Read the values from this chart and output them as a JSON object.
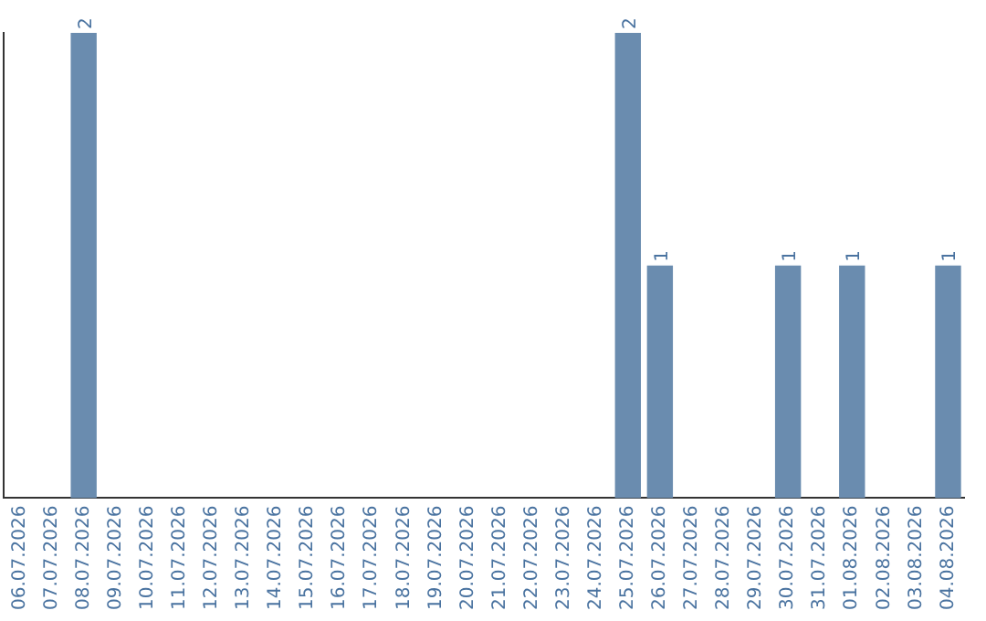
{
  "chart_data": {
    "type": "bar",
    "categories": [
      "06.07.2026",
      "07.07.2026",
      "08.07.2026",
      "09.07.2026",
      "10.07.2026",
      "11.07.2026",
      "12.07.2026",
      "13.07.2026",
      "14.07.2026",
      "15.07.2026",
      "16.07.2026",
      "17.07.2026",
      "18.07.2026",
      "19.07.2026",
      "20.07.2026",
      "21.07.2026",
      "22.07.2026",
      "23.07.2026",
      "24.07.2026",
      "25.07.2026",
      "26.07.2026",
      "27.07.2026",
      "28.07.2026",
      "29.07.2026",
      "30.07.2026",
      "31.07.2026",
      "01.08.2026",
      "02.08.2026",
      "03.08.2026",
      "04.08.2026"
    ],
    "values": [
      0,
      0,
      2,
      0,
      0,
      0,
      0,
      0,
      0,
      0,
      0,
      0,
      0,
      0,
      0,
      0,
      0,
      0,
      0,
      2,
      1,
      0,
      0,
      0,
      1,
      0,
      1,
      0,
      0,
      1
    ],
    "color": "#6a8caf",
    "value_labels": [
      null,
      null,
      "2",
      null,
      null,
      null,
      null,
      null,
      null,
      null,
      null,
      null,
      null,
      null,
      null,
      null,
      null,
      null,
      null,
      "2",
      "1",
      null,
      null,
      null,
      "1",
      null,
      "1",
      null,
      null,
      "1"
    ],
    "grid": false,
    "legend": false,
    "tick_labels": "x"
  }
}
